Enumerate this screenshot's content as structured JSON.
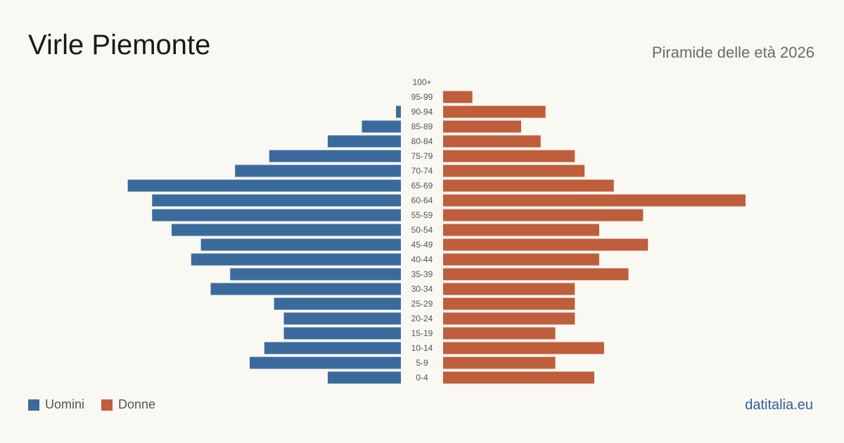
{
  "header": {
    "title": "Virle Piemonte",
    "subtitle": "Piramide delle età 2026"
  },
  "legend": {
    "men_label": "Uomini",
    "women_label": "Donne"
  },
  "brand": "datitalia.eu",
  "colors": {
    "men": "#3a6b9c",
    "women": "#bf5e3b",
    "label": "#555555"
  },
  "chart_data": {
    "type": "bar",
    "orientation": "horizontal-pyramid",
    "title": "Virle Piemonte",
    "subtitle": "Piramide delle età 2026",
    "categories": [
      "100+",
      "95-99",
      "90-94",
      "85-89",
      "80-84",
      "75-79",
      "70-74",
      "65-69",
      "60-64",
      "55-59",
      "50-54",
      "45-49",
      "40-44",
      "35-39",
      "30-34",
      "25-29",
      "20-24",
      "15-19",
      "10-14",
      "5-9",
      "0-4"
    ],
    "series": [
      {
        "name": "Uomini",
        "values": [
          0,
          0,
          1,
          8,
          15,
          27,
          34,
          56,
          51,
          51,
          47,
          41,
          43,
          35,
          39,
          26,
          24,
          24,
          28,
          31,
          15
        ]
      },
      {
        "name": "Donne",
        "values": [
          0,
          6,
          21,
          16,
          20,
          27,
          29,
          35,
          62,
          41,
          32,
          42,
          32,
          38,
          27,
          27,
          27,
          23,
          33,
          23,
          31
        ]
      }
    ],
    "max_value": 62,
    "legend_position": "bottom-left",
    "grid": false
  }
}
